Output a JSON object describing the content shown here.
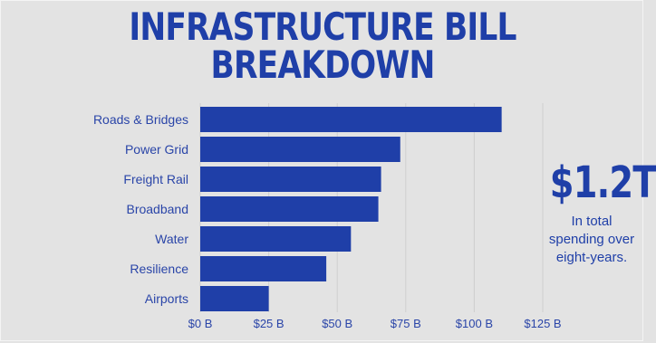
{
  "title_line1": "INFRASTRUCTURE BILL",
  "title_line2": "BREAKDOWN",
  "highlight": {
    "amount": "$1.2T",
    "caption": "In total spending over eight-years."
  },
  "colors": {
    "background": "#e3e3e3",
    "bar": "#1f3fa8",
    "text": "#2a45a8"
  },
  "chart_data": {
    "type": "bar",
    "orientation": "horizontal",
    "categories": [
      "Roads & Bridges",
      "Power Grid",
      "Freight Rail",
      "Broadband",
      "Water",
      "Resilience",
      "Airports"
    ],
    "values": [
      110,
      73,
      66,
      65,
      55,
      46,
      25
    ],
    "value_unit": "B",
    "xlim": [
      0,
      125
    ],
    "x_ticks": [
      "$0 B",
      "$25 B",
      "$50 B",
      "$75 B",
      "$100 B",
      "$125 B"
    ],
    "grid": true
  }
}
